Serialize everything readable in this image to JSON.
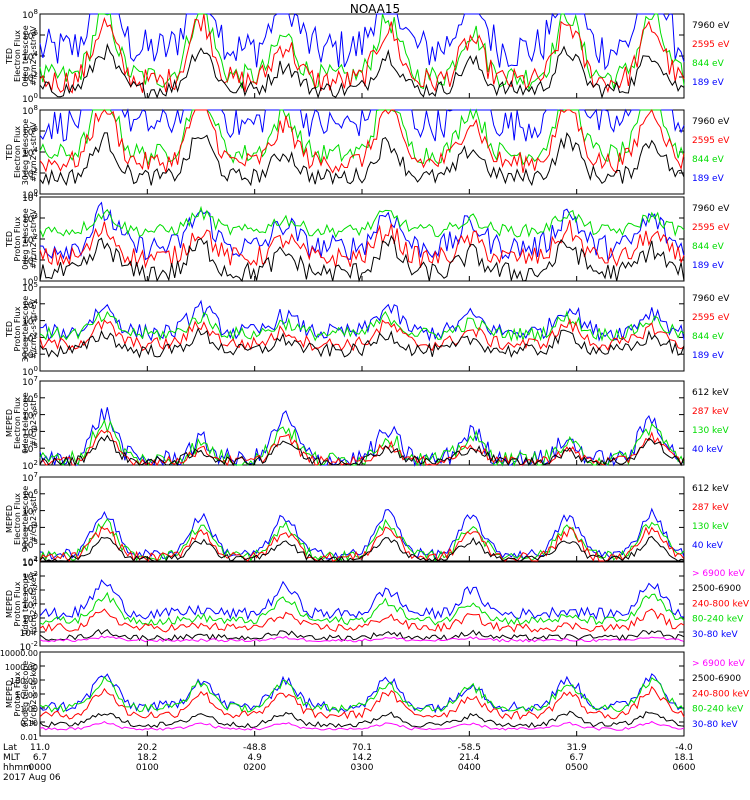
{
  "title": "NOAA15",
  "colors": {
    "black": "#000000",
    "red": "#ff0000",
    "green": "#00dd00",
    "blue": "#0000ff",
    "magenta": "#ff00ff"
  },
  "chart_data": [
    {
      "type": "line",
      "ylabel": [
        "TED",
        "Electron Flux",
        "0deg telescope",
        "#/cm2-s-str-eV"
      ],
      "yticks": [
        "10^0",
        "10^2",
        "10^4",
        "10^6",
        "10^8"
      ],
      "log": true,
      "legend": [
        {
          "label": "7960 eV",
          "color": "black"
        },
        {
          "label": "2595 eV",
          "color": "red"
        },
        {
          "label": "844 eV",
          "color": "green"
        },
        {
          "label": "189 eV",
          "color": "blue"
        }
      ],
      "peaks": [
        [
          0.1,
          5.5
        ],
        [
          0.25,
          6.0
        ],
        [
          0.38,
          3.5
        ],
        [
          0.54,
          5.0
        ],
        [
          0.67,
          4.0
        ],
        [
          0.82,
          5.5
        ],
        [
          0.95,
          5.2
        ]
      ],
      "series": [
        {
          "color": "blue",
          "base": 2.3,
          "amp": 1.3,
          "spike": 1.0
        },
        {
          "color": "green",
          "base": 1.0,
          "amp": 1.0,
          "spike": 0.6
        },
        {
          "color": "red",
          "base": 0.8,
          "amp": 0.9,
          "spike": 0.6
        },
        {
          "color": "black",
          "base": 0.4,
          "amp": 0.6,
          "spike": 0.4
        }
      ]
    },
    {
      "type": "line",
      "ylabel": [
        "TED",
        "Electron Flux",
        "30deg telescope",
        "#/cm2-s-str-eV"
      ],
      "yticks": [
        "10^0",
        "10^2",
        "10^4",
        "10^6",
        "10^8"
      ],
      "log": true,
      "legend": [
        {
          "label": "7960 eV",
          "color": "black"
        },
        {
          "label": "2595 eV",
          "color": "red"
        },
        {
          "label": "844 eV",
          "color": "green"
        },
        {
          "label": "189 eV",
          "color": "blue"
        }
      ],
      "peaks": [
        [
          0.1,
          5.5
        ],
        [
          0.25,
          6.0
        ],
        [
          0.38,
          3.5
        ],
        [
          0.54,
          5.0
        ],
        [
          0.67,
          4.0
        ],
        [
          0.82,
          5.5
        ],
        [
          0.95,
          5.2
        ]
      ],
      "series": [
        {
          "color": "blue",
          "base": 3.3,
          "amp": 1.2,
          "spike": 0.8
        },
        {
          "color": "green",
          "base": 1.9,
          "amp": 1.0,
          "spike": 0.5
        },
        {
          "color": "red",
          "base": 1.5,
          "amp": 0.9,
          "spike": 0.5
        },
        {
          "color": "black",
          "base": 0.8,
          "amp": 0.6,
          "spike": 0.4
        }
      ]
    },
    {
      "type": "line",
      "ylabel": [
        "TED",
        "Proton Flux",
        "0deg telescope",
        "#/cm2-s-str-eV"
      ],
      "yticks": [
        "10^0",
        "10^1",
        "10^2",
        "10^3",
        "10^4"
      ],
      "log": true,
      "legend": [
        {
          "label": "7960 eV",
          "color": "black"
        },
        {
          "label": "2595 eV",
          "color": "red"
        },
        {
          "label": "844 eV",
          "color": "green"
        },
        {
          "label": "189 eV",
          "color": "blue"
        }
      ],
      "peaks": [
        [
          0.1,
          3.0
        ],
        [
          0.25,
          3.0
        ],
        [
          0.38,
          2.0
        ],
        [
          0.54,
          3.0
        ],
        [
          0.67,
          2.0
        ],
        [
          0.82,
          3.0
        ],
        [
          0.95,
          2.5
        ]
      ],
      "series": [
        {
          "color": "blue",
          "base": 1.6,
          "amp": 1.0,
          "spike": 0.6
        },
        {
          "color": "green",
          "base": 2.4,
          "amp": 0.5,
          "spike": 0.3
        },
        {
          "color": "red",
          "base": 1.1,
          "amp": 0.8,
          "spike": 0.5
        },
        {
          "color": "black",
          "base": 0.4,
          "amp": 0.8,
          "spike": 0.5
        }
      ]
    },
    {
      "type": "line",
      "ylabel": [
        "TED",
        "Proton Flux",
        "30deg telescope",
        "#/cm2-s-str-eV"
      ],
      "yticks": [
        "10^0",
        "10^1",
        "10^2",
        "10^3",
        "10^4",
        "10^5"
      ],
      "log": true,
      "legend": [
        {
          "label": "7960 eV",
          "color": "black"
        },
        {
          "label": "2595 eV",
          "color": "red"
        },
        {
          "label": "844 eV",
          "color": "green"
        },
        {
          "label": "189 eV",
          "color": "blue"
        }
      ],
      "peaks": [
        [
          0.1,
          3.0
        ],
        [
          0.25,
          3.0
        ],
        [
          0.38,
          2.0
        ],
        [
          0.54,
          3.0
        ],
        [
          0.67,
          2.0
        ],
        [
          0.82,
          3.0
        ],
        [
          0.95,
          2.5
        ]
      ],
      "series": [
        {
          "color": "blue",
          "base": 2.3,
          "amp": 0.9,
          "spike": 0.5
        },
        {
          "color": "green",
          "base": 2.2,
          "amp": 0.6,
          "spike": 0.4
        },
        {
          "color": "red",
          "base": 1.6,
          "amp": 0.7,
          "spike": 0.4
        },
        {
          "color": "black",
          "base": 1.2,
          "amp": 0.6,
          "spike": 0.4
        }
      ]
    },
    {
      "type": "line",
      "ylabel": [
        "MEPED",
        "Electron Flux",
        "0deg telescope",
        "#/cm2-s-str"
      ],
      "yticks": [
        "10^2",
        "10^3",
        "10^4",
        "10^5",
        "10^6",
        "10^7"
      ],
      "log": true,
      "legend": [
        {
          "label": "612 keV",
          "color": "black"
        },
        {
          "label": "287 keV",
          "color": "red"
        },
        {
          "label": "130 keV",
          "color": "green"
        },
        {
          "label": "40 keV",
          "color": "blue"
        }
      ],
      "peaks": [
        [
          0.1,
          5.0
        ],
        [
          0.25,
          2.0
        ],
        [
          0.38,
          4.5
        ],
        [
          0.54,
          3.0
        ],
        [
          0.67,
          3.0
        ],
        [
          0.82,
          2.0
        ],
        [
          0.95,
          4.5
        ]
      ],
      "series": [
        {
          "color": "blue",
          "base": 0.3,
          "amp": 1.0,
          "spike": 0.6
        },
        {
          "color": "green",
          "base": 0.3,
          "amp": 0.8,
          "spike": 0.5
        },
        {
          "color": "red",
          "base": 0.2,
          "amp": 0.6,
          "spike": 0.3
        },
        {
          "color": "black",
          "base": 0.2,
          "amp": 0.5,
          "spike": 0.3
        }
      ]
    },
    {
      "type": "line",
      "ylabel": [
        "MEPED",
        "Electron Flux",
        "90deg telescope",
        "#/cm2-s-str"
      ],
      "yticks": [
        "10^2",
        "10^3",
        "10^4",
        "10^5",
        "10^6",
        "10^7"
      ],
      "log": true,
      "legend": [
        {
          "label": "612 keV",
          "color": "black"
        },
        {
          "label": "287 keV",
          "color": "red"
        },
        {
          "label": "130 keV",
          "color": "green"
        },
        {
          "label": "40 keV",
          "color": "blue"
        }
      ],
      "peaks": [
        [
          0.1,
          4.5
        ],
        [
          0.25,
          4.0
        ],
        [
          0.38,
          4.0
        ],
        [
          0.54,
          4.5
        ],
        [
          0.67,
          4.0
        ],
        [
          0.82,
          4.0
        ],
        [
          0.95,
          4.5
        ]
      ],
      "series": [
        {
          "color": "blue",
          "base": 0.4,
          "amp": 1.0,
          "spike": 0.3
        },
        {
          "color": "green",
          "base": 0.3,
          "amp": 0.8,
          "spike": 0.3
        },
        {
          "color": "red",
          "base": 0.2,
          "amp": 0.7,
          "spike": 0.3
        },
        {
          "color": "black",
          "base": 0.1,
          "amp": 0.5,
          "spike": 0.2
        }
      ]
    },
    {
      "type": "line",
      "ylabel": [
        "MEPED",
        "Proton Flux",
        "0deg telescope",
        "#/cm2-s-str-keV"
      ],
      "yticks": [
        "10^-2",
        "10^-1",
        "10^0",
        "10^1",
        "10^2",
        "10^3",
        "10^4"
      ],
      "log": true,
      "legend": [
        {
          "label": "> 6900 keV",
          "color": "magenta"
        },
        {
          "label": "2500-6900",
          "color": "black"
        },
        {
          "label": "240-800 keV",
          "color": "red"
        },
        {
          "label": "80-240 keV",
          "color": "green"
        },
        {
          "label": "30-80 keV",
          "color": "blue"
        }
      ],
      "peaks": [
        [
          0.1,
          4.0
        ],
        [
          0.25,
          0.5
        ],
        [
          0.38,
          3.5
        ],
        [
          0.54,
          3.0
        ],
        [
          0.67,
          3.0
        ],
        [
          0.82,
          0.5
        ],
        [
          0.95,
          4.0
        ]
      ],
      "series": [
        {
          "color": "blue",
          "base": 2.3,
          "amp": 1.0,
          "spike": 0.4
        },
        {
          "color": "green",
          "base": 1.8,
          "amp": 0.8,
          "spike": 0.3
        },
        {
          "color": "red",
          "base": 1.3,
          "amp": 0.5,
          "spike": 0.3
        },
        {
          "color": "black",
          "base": 0.6,
          "amp": 0.2,
          "spike": 0.2
        },
        {
          "color": "magenta",
          "base": 0.4,
          "amp": 0.1,
          "spike": 0.1
        }
      ]
    },
    {
      "type": "line",
      "ylabel": [
        "MEPED",
        "Proton Flux",
        "90deg telescope",
        "#/cm2-s-str-keV"
      ],
      "yticks": [
        "0.01",
        "0.10",
        "1.00",
        "10.00",
        "100.00",
        "1000.00",
        "10000.00"
      ],
      "log": true,
      "legend": [
        {
          "label": "> 6900 keV",
          "color": "magenta"
        },
        {
          "label": "2500-6900",
          "color": "black"
        },
        {
          "label": "240-800 keV",
          "color": "red"
        },
        {
          "label": "80-240 keV",
          "color": "green"
        },
        {
          "label": "30-80 keV",
          "color": "blue"
        }
      ],
      "peaks": [
        [
          0.1,
          4.0
        ],
        [
          0.25,
          3.5
        ],
        [
          0.38,
          3.5
        ],
        [
          0.54,
          3.5
        ],
        [
          0.67,
          3.0
        ],
        [
          0.82,
          3.5
        ],
        [
          0.95,
          4.0
        ]
      ],
      "series": [
        {
          "color": "blue",
          "base": 2.1,
          "amp": 1.0,
          "spike": 0.4
        },
        {
          "color": "green",
          "base": 2.0,
          "amp": 0.9,
          "spike": 0.3
        },
        {
          "color": "red",
          "base": 1.5,
          "amp": 0.8,
          "spike": 0.3
        },
        {
          "color": "black",
          "base": 0.8,
          "amp": 0.4,
          "spike": 0.2
        },
        {
          "color": "magenta",
          "base": 0.5,
          "amp": 0.2,
          "spike": 0.1
        }
      ]
    }
  ],
  "xaxis": {
    "row_labels": [
      "Lat",
      "MLT",
      "hhmm",
      "2017 Aug 06"
    ],
    "ticks": [
      {
        "lat": "11.0",
        "mlt": "6.7",
        "hhmm": "0000"
      },
      {
        "lat": "20.2",
        "mlt": "18.2",
        "hhmm": "0100"
      },
      {
        "lat": "-48.8",
        "mlt": "4.9",
        "hhmm": "0200"
      },
      {
        "lat": "70.1",
        "mlt": "14.2",
        "hhmm": "0300"
      },
      {
        "lat": "-58.5",
        "mlt": "21.4",
        "hhmm": "0400"
      },
      {
        "lat": "31.9",
        "mlt": "6.7",
        "hhmm": "0500"
      },
      {
        "lat": "-4.0",
        "mlt": "18.1",
        "hhmm": "0600"
      }
    ]
  }
}
